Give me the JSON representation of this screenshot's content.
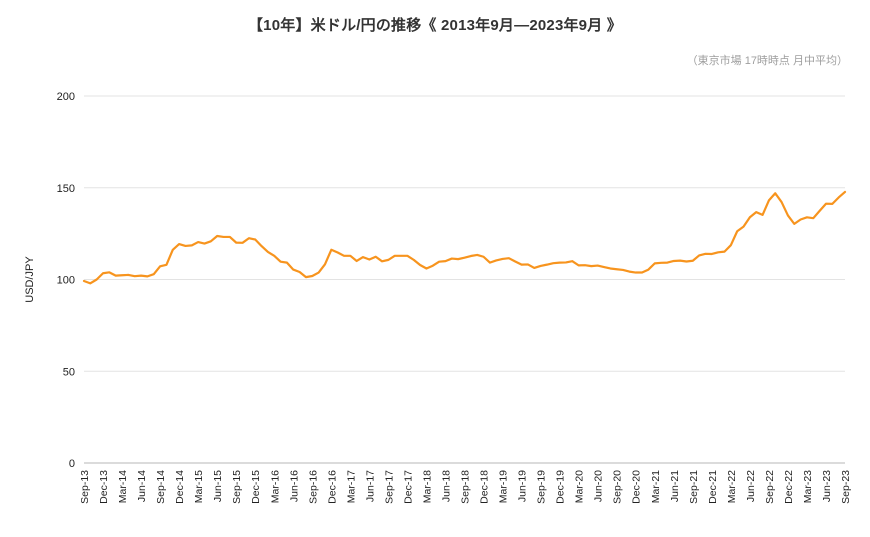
{
  "chart_data": {
    "type": "line",
    "title": "【10年】米ドル/円の推移《 2013年9月―2023年9月 》",
    "subtitle": "（東京市場 17時時点 月中平均）",
    "ylabel": "USD/JPY",
    "xlabel": "",
    "ylim": [
      0,
      200
    ],
    "y_ticks": [
      0,
      50,
      100,
      150,
      200
    ],
    "x_tick_step": 3,
    "x_tick_labels": [
      "Sep-13",
      "Dec-13",
      "Mar-14",
      "Jun-14",
      "Sep-14",
      "Dec-14",
      "Mar-15",
      "Jun-15",
      "Sep-15",
      "Dec-15",
      "Mar-16",
      "Jun-16",
      "Sep-16",
      "Dec-16",
      "Mar-17",
      "Jun-17",
      "Sep-17",
      "Dec-17",
      "Mar-18",
      "Jun-18",
      "Sep-18",
      "Dec-18",
      "Mar-19",
      "Jun-19",
      "Sep-19",
      "Dec-19",
      "Mar-20",
      "Jun-20",
      "Sep-20",
      "Dec-20",
      "Mar-21",
      "Jun-21",
      "Sep-21",
      "Dec-21",
      "Mar-22",
      "Jun-22",
      "Sep-22",
      "Dec-22",
      "Mar-23",
      "Jun-23",
      "Sep-23"
    ],
    "grid": "horizontal",
    "legend": "none",
    "colors": {
      "line": "#F7941E",
      "gridline": "#e3e3e3",
      "axis": "#b7b7b7",
      "tick_text": "#222222",
      "subtitle_text": "#9e9e9e"
    },
    "series": [
      {
        "name": "USD/JPY",
        "color": "#F7941E",
        "start": "Sep-13",
        "values": [
          99.2,
          97.9,
          100.0,
          103.4,
          103.9,
          102.1,
          102.3,
          102.5,
          101.8,
          102.1,
          101.7,
          102.9,
          107.2,
          108.0,
          116.2,
          119.3,
          118.3,
          118.6,
          120.4,
          119.6,
          120.8,
          123.7,
          123.2,
          123.2,
          120.1,
          120.0,
          122.5,
          121.8,
          118.2,
          115.0,
          112.9,
          109.7,
          109.2,
          105.4,
          104.1,
          101.3,
          101.9,
          103.8,
          108.3,
          116.2,
          114.7,
          112.9,
          112.9,
          110.1,
          112.2,
          110.9,
          112.4,
          109.9,
          110.7,
          112.9,
          112.9,
          112.9,
          110.7,
          107.9,
          106.0,
          107.5,
          109.7,
          110.0,
          111.4,
          111.1,
          111.9,
          112.8,
          113.4,
          112.4,
          109.2,
          110.4,
          111.2,
          111.6,
          109.8,
          108.1,
          108.2,
          106.3,
          107.4,
          108.1,
          108.9,
          109.2,
          109.3,
          110.0,
          107.7,
          107.8,
          107.3,
          107.6,
          106.8,
          106.0,
          105.6,
          105.2,
          104.3,
          103.8,
          103.8,
          105.4,
          108.8,
          109.1,
          109.2,
          110.1,
          110.3,
          109.8,
          110.2,
          113.1,
          114.0,
          113.9,
          114.8,
          115.2,
          118.7,
          126.3,
          128.8,
          133.9,
          136.7,
          135.2,
          143.1,
          147.0,
          142.2,
          134.9,
          130.3,
          132.7,
          133.9,
          133.4,
          137.4,
          141.3,
          141.2,
          144.7,
          147.7
        ]
      }
    ]
  }
}
